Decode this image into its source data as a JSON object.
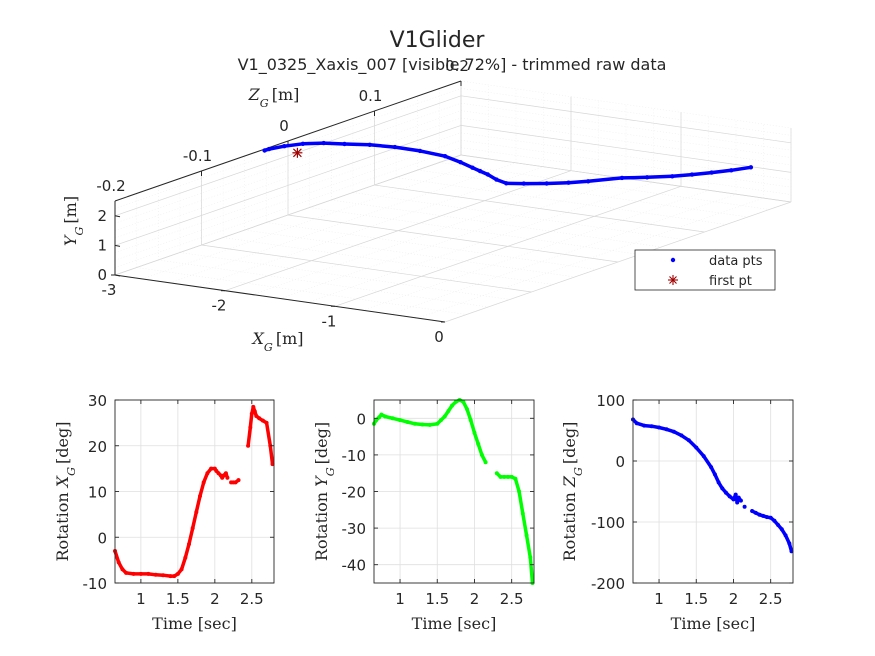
{
  "figure": {
    "title": "V1Glider",
    "subtitle": "V1_0325_Xaxis_007 [visible 72%] - trimmed raw data"
  },
  "chart_data": [
    {
      "type": "scatter3d",
      "name": "trajectory",
      "xlabel": "X_G [m]",
      "ylabel": "Y_G [m]",
      "zlabel": "Z_G [m]",
      "xlim": [
        -3,
        0
      ],
      "ylim": [
        0,
        2.5
      ],
      "zlim": [
        -0.2,
        0.2
      ],
      "xticks": [
        "-3",
        "-2",
        "-1",
        "0"
      ],
      "yticks": [
        "0",
        "1",
        "2"
      ],
      "zticks": [
        "-0.2",
        "-0.1",
        "0",
        "0.1",
        "0.2"
      ],
      "grid": true,
      "legend": {
        "placement": "right",
        "entries": [
          {
            "label": "data pts",
            "marker": "dot",
            "color": "#0000ff"
          },
          {
            "label": "first pt",
            "marker": "asterisk",
            "color": "#a00000"
          }
        ]
      },
      "series": [
        {
          "name": "data pts",
          "color": "#0000ff",
          "points": [
            [
              -0.05,
              1.55,
              0.16
            ],
            [
              -0.15,
              1.5,
              0.15
            ],
            [
              -0.25,
              1.47,
              0.14
            ],
            [
              -0.35,
              1.45,
              0.13
            ],
            [
              -0.45,
              1.44,
              0.12
            ],
            [
              -0.6,
              1.43,
              0.11
            ],
            [
              -0.75,
              1.43,
              0.1
            ],
            [
              -0.9,
              1.44,
              0.08
            ],
            [
              -1.0,
              1.44,
              0.07
            ],
            [
              -1.12,
              1.45,
              0.06
            ],
            [
              -1.25,
              1.48,
              0.05
            ],
            [
              -1.33,
              1.55,
              0.04
            ],
            [
              -1.38,
              1.7,
              0.035
            ],
            [
              -1.42,
              1.9,
              0.03
            ],
            [
              -1.45,
              2.05,
              0.025
            ],
            [
              -1.48,
              2.2,
              0.02
            ],
            [
              -1.55,
              2.4,
              0.015
            ],
            [
              -1.65,
              2.6,
              0.01
            ],
            [
              -1.8,
              2.8,
              0.0
            ],
            [
              -1.95,
              2.95,
              -0.01
            ],
            [
              -2.1,
              3.05,
              -0.02
            ],
            [
              -2.25,
              3.1,
              -0.03
            ],
            [
              -2.4,
              3.1,
              -0.035
            ],
            [
              -2.55,
              3.05,
              -0.04
            ],
            [
              -2.68,
              2.95,
              -0.045
            ],
            [
              -2.78,
              2.85,
              -0.05
            ],
            [
              -2.82,
              2.78,
              -0.05
            ]
          ]
        },
        {
          "name": "first pt",
          "color": "#a00000",
          "points": [
            [
              -2.6,
              2.72,
              -0.04
            ]
          ]
        }
      ]
    },
    {
      "type": "scatter",
      "name": "rotation-x",
      "xlabel": "Time [sec]",
      "ylabel": "Rotation X_G [deg]",
      "xlim": [
        0.65,
        2.8
      ],
      "ylim": [
        -10,
        30
      ],
      "xticks": [
        1,
        1.5,
        2,
        2.5
      ],
      "yticks": [
        -10,
        0,
        10,
        20,
        30
      ],
      "grid": true,
      "color": "#ff0000",
      "x": [
        0.65,
        0.7,
        0.75,
        0.8,
        0.9,
        1.0,
        1.1,
        1.2,
        1.3,
        1.4,
        1.45,
        1.5,
        1.55,
        1.6,
        1.65,
        1.7,
        1.75,
        1.8,
        1.85,
        1.9,
        1.95,
        2.0,
        2.02,
        2.05,
        2.08,
        2.1,
        2.12,
        2.15,
        2.17,
        null,
        2.22,
        2.25,
        2.28,
        2.32,
        null,
        2.45,
        2.48,
        2.5,
        2.52,
        2.54,
        2.56,
        2.6,
        2.65,
        2.7,
        2.75,
        2.78
      ],
      "y": [
        -3,
        -5.5,
        -7,
        -7.8,
        -8,
        -8,
        -8,
        -8.2,
        -8.3,
        -8.5,
        -8.5,
        -8,
        -7,
        -4.5,
        -1.5,
        2,
        5.5,
        9,
        12,
        14,
        15,
        15,
        14.5,
        14,
        13.5,
        13,
        13.5,
        14,
        13,
        null,
        12,
        12,
        12,
        12.5,
        null,
        20,
        24,
        27,
        28.5,
        27.5,
        26.5,
        26,
        25.5,
        25,
        20,
        16
      ]
    },
    {
      "type": "scatter",
      "name": "rotation-y",
      "xlabel": "Time [sec]",
      "ylabel": "Rotation Y_G [deg]",
      "xlim": [
        0.65,
        2.8
      ],
      "ylim": [
        -45,
        5
      ],
      "xticks": [
        1,
        1.5,
        2,
        2.5
      ],
      "yticks": [
        -40,
        -30,
        -20,
        -10,
        0
      ],
      "grid": true,
      "color": "#00ff00",
      "x": [
        0.65,
        0.68,
        0.72,
        0.75,
        0.8,
        0.9,
        1.0,
        1.1,
        1.2,
        1.3,
        1.4,
        1.5,
        1.55,
        1.6,
        1.65,
        1.7,
        1.75,
        1.8,
        1.85,
        1.9,
        1.95,
        2.0,
        2.05,
        2.1,
        2.15,
        null,
        2.3,
        2.35,
        2.4,
        2.45,
        2.5,
        2.55,
        2.6,
        2.65,
        2.7,
        2.75,
        2.78
      ],
      "y": [
        -1.5,
        -0.5,
        0.3,
        1,
        0.5,
        0,
        -0.5,
        -1,
        -1.5,
        -1.7,
        -1.8,
        -1.5,
        -0.5,
        0.5,
        2,
        3.5,
        4.5,
        5,
        4.5,
        2.5,
        -0.5,
        -4,
        -7,
        -10,
        -12,
        null,
        -15,
        -16,
        -16,
        -16,
        -16,
        -16.5,
        -20,
        -26,
        -32,
        -38,
        -45
      ]
    },
    {
      "type": "scatter",
      "name": "rotation-z",
      "xlabel": "Time [sec]",
      "ylabel": "Rotation Z_G [deg]",
      "xlim": [
        0.65,
        2.8
      ],
      "ylim": [
        -200,
        100
      ],
      "xticks": [
        1,
        1.5,
        2,
        2.5
      ],
      "yticks": [
        -200,
        -100,
        0,
        100
      ],
      "grid": true,
      "color": "#0000ff",
      "x": [
        0.65,
        0.7,
        0.8,
        0.9,
        1.0,
        1.1,
        1.2,
        1.3,
        1.4,
        1.5,
        1.6,
        1.7,
        1.75,
        1.8,
        1.85,
        1.9,
        1.95,
        2.0,
        2.03,
        2.05,
        2.07,
        2.1,
        null,
        2.15,
        null,
        2.25,
        2.3,
        2.35,
        2.4,
        2.45,
        2.5,
        2.55,
        2.6,
        2.65,
        2.7,
        2.75,
        2.78
      ],
      "y": [
        68,
        62,
        58,
        57,
        55,
        52,
        48,
        42,
        34,
        22,
        8,
        -10,
        -22,
        -35,
        -45,
        -52,
        -58,
        -63,
        -55,
        -68,
        -60,
        -65,
        null,
        -75,
        null,
        -82,
        -85,
        -88,
        -90,
        -92,
        -93,
        -98,
        -105,
        -112,
        -122,
        -135,
        -148
      ]
    }
  ]
}
